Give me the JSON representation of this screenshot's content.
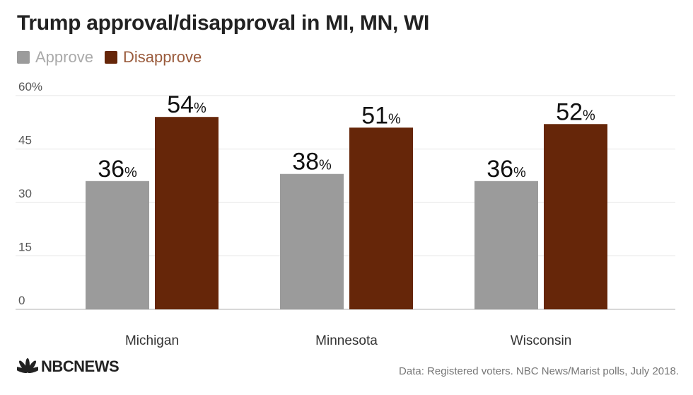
{
  "title": "Trump approval/disapproval in MI, MN, WI",
  "colors": {
    "approve": "#9b9b9b",
    "disapprove": "#662609",
    "grid": "#e4e4e4",
    "axis_text": "#555555"
  },
  "chart_data": {
    "type": "bar",
    "title": "Trump approval/disapproval in MI, MN, WI",
    "categories": [
      "Michigan",
      "Minnesota",
      "Wisconsin"
    ],
    "series": [
      {
        "name": "Approve",
        "values": [
          36,
          38,
          36
        ]
      },
      {
        "name": "Disapprove",
        "values": [
          54,
          51,
          52
        ]
      }
    ],
    "ylim": [
      0,
      60
    ],
    "yticks": [
      0,
      15,
      30,
      45,
      60
    ],
    "ytick_labels": [
      "0",
      "15",
      "30",
      "45",
      "60%"
    ],
    "value_suffix": "%",
    "xlabel": "",
    "ylabel": "",
    "legend_position": "top-left",
    "grid": true
  },
  "footer": {
    "brand": "NBCNEWS",
    "source": "Data: Registered voters. NBC News/Marist polls, July 2018."
  }
}
